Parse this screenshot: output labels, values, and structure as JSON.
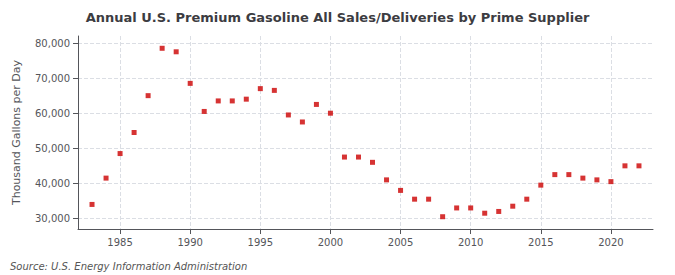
{
  "chart_data": {
    "type": "scatter",
    "title": "Annual U.S. Premium Gasoline All Sales/Deliveries by Prime Supplier",
    "ylabel": "Thousand Gallons per Day",
    "annotations": [
      "Source: U.S. Energy Information Administration"
    ],
    "x": [
      1983,
      1984,
      1985,
      1986,
      1987,
      1988,
      1989,
      1990,
      1991,
      1992,
      1993,
      1994,
      1995,
      1996,
      1997,
      1998,
      1999,
      2000,
      2001,
      2002,
      2003,
      2004,
      2005,
      2006,
      2007,
      2008,
      2009,
      2010,
      2011,
      2012,
      2013,
      2014,
      2015,
      2016,
      2017,
      2018,
      2019,
      2020,
      2021,
      2022
    ],
    "values": [
      34000,
      41500,
      48500,
      54500,
      65000,
      78500,
      77500,
      68500,
      60500,
      63500,
      63500,
      64000,
      67000,
      66500,
      59500,
      57500,
      62500,
      60000,
      47500,
      47500,
      46000,
      41000,
      38000,
      35500,
      35500,
      30500,
      33000,
      33000,
      31500,
      32000,
      33500,
      35500,
      39500,
      42500,
      42500,
      41500,
      41000,
      40500,
      45000,
      45000
    ],
    "color": "#cc0000",
    "marker": "square",
    "xlim": [
      1982,
      2023
    ],
    "xticks": [
      1985,
      1990,
      1995,
      2000,
      2005,
      2010,
      2015,
      2020
    ],
    "ylim": [
      27000,
      82000
    ],
    "yticks": [
      {
        "value": 30000,
        "label": "30,000"
      },
      {
        "value": 40000,
        "label": "40,000"
      },
      {
        "value": 50000,
        "label": "50,000"
      },
      {
        "value": 60000,
        "label": "60,000"
      },
      {
        "value": 70000,
        "label": "70,000"
      },
      {
        "value": 80000,
        "label": "80,000"
      }
    ],
    "grid": true
  }
}
